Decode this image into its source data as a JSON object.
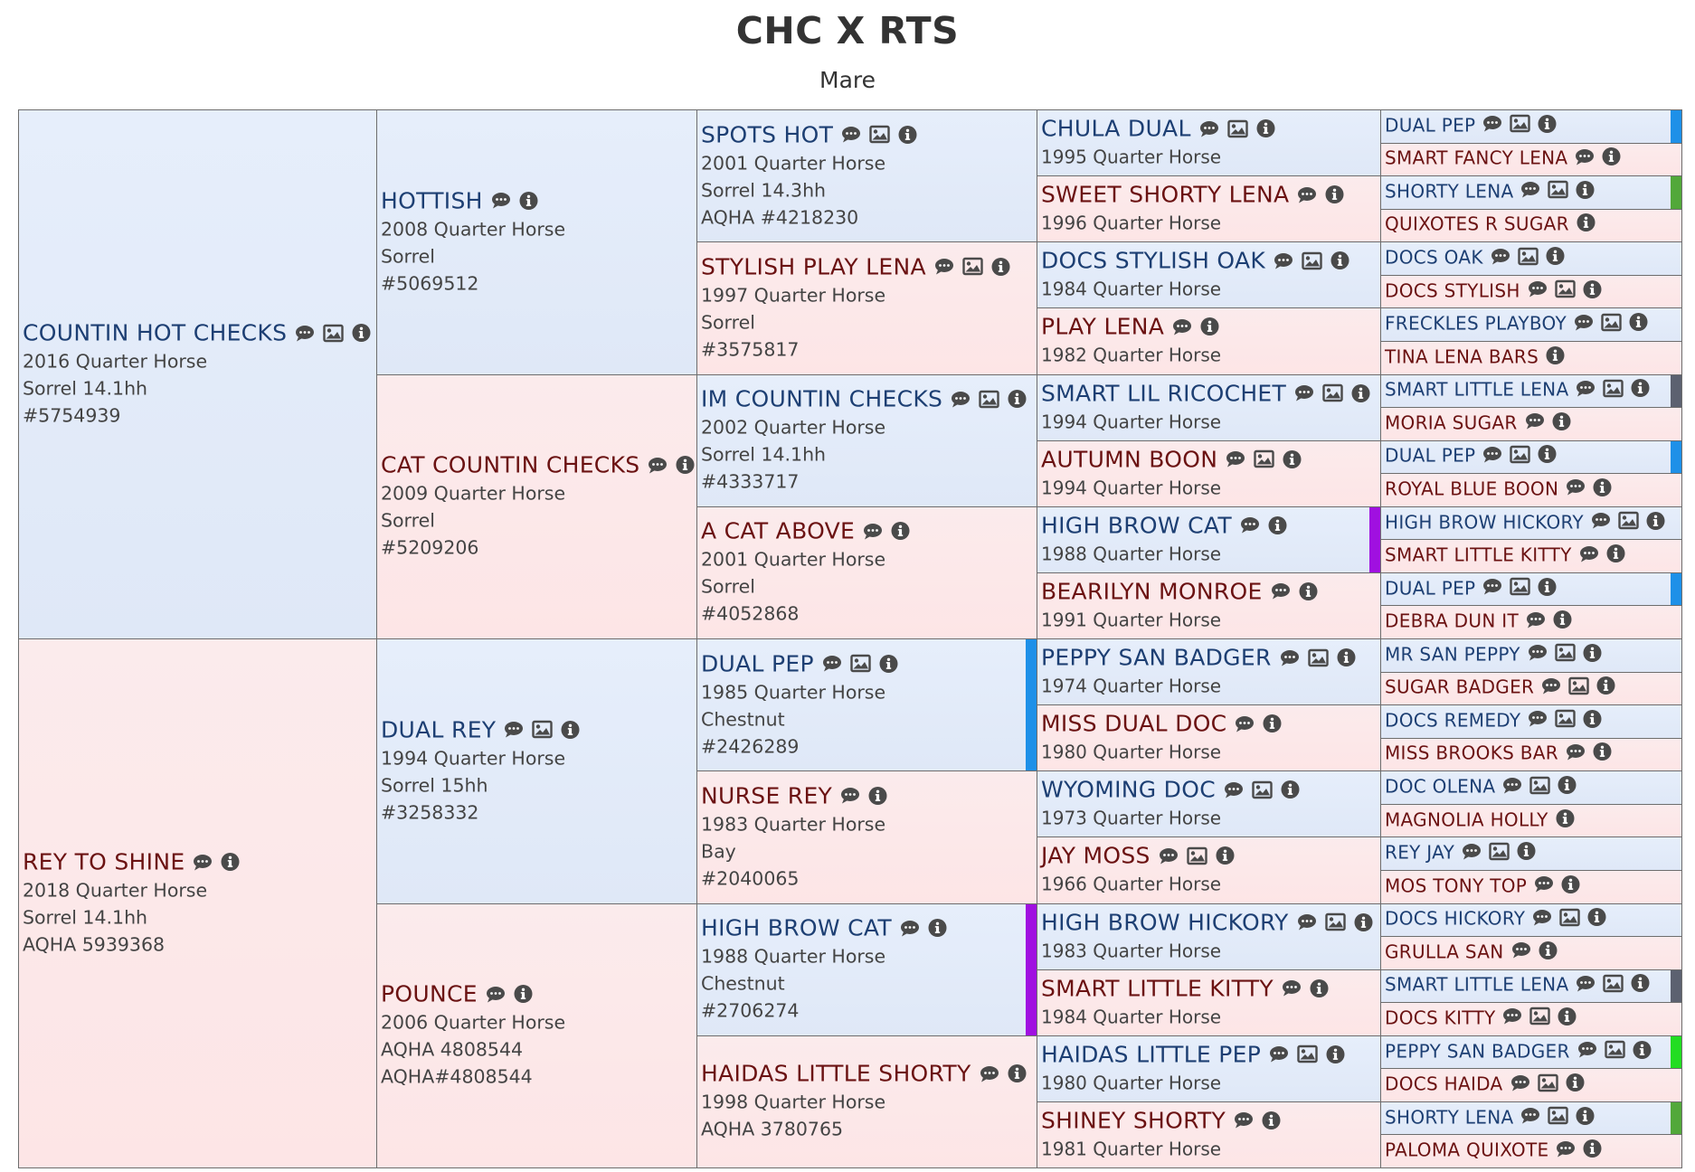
{
  "header": {
    "title": "CHC X RTS",
    "subtitle": "Mare"
  },
  "pedigree": [
    {
      "gen": 1,
      "sex": "m",
      "name": "COUNTIN HOT CHECKS",
      "icons": [
        "comment",
        "image",
        "info"
      ],
      "details": [
        "2016 Quarter Horse",
        "Sorrel 14.1hh",
        "#5754939"
      ]
    },
    {
      "gen": 1,
      "sex": "f",
      "name": "REY TO SHINE",
      "icons": [
        "comment",
        "info"
      ],
      "details": [
        "2018 Quarter Horse",
        "Sorrel 14.1hh",
        "AQHA 5939368"
      ]
    },
    {
      "gen": 2,
      "sex": "m",
      "name": "HOTTISH",
      "icons": [
        "comment",
        "info"
      ],
      "details": [
        "2008 Quarter Horse",
        "Sorrel",
        "#5069512"
      ]
    },
    {
      "gen": 2,
      "sex": "f",
      "name": "CAT COUNTIN CHECKS",
      "icons": [
        "comment",
        "info"
      ],
      "details": [
        "2009 Quarter Horse",
        "Sorrel",
        "#5209206"
      ]
    },
    {
      "gen": 2,
      "sex": "m",
      "name": "DUAL REY",
      "icons": [
        "comment",
        "image",
        "info"
      ],
      "details": [
        "1994 Quarter Horse",
        "Sorrel 15hh",
        "#3258332"
      ]
    },
    {
      "gen": 2,
      "sex": "f",
      "name": "POUNCE",
      "icons": [
        "comment",
        "info"
      ],
      "details": [
        "2006 Quarter Horse",
        "AQHA 4808544",
        "AQHA#4808544"
      ]
    },
    {
      "gen": 3,
      "sex": "m",
      "name": "SPOTS HOT",
      "icons": [
        "comment",
        "image",
        "info"
      ],
      "details": [
        "2001 Quarter Horse",
        "Sorrel 14.3hh",
        "AQHA #4218230"
      ]
    },
    {
      "gen": 3,
      "sex": "f",
      "name": "STYLISH PLAY LENA",
      "icons": [
        "comment",
        "image",
        "info"
      ],
      "details": [
        "1997 Quarter Horse",
        "Sorrel",
        "#3575817"
      ]
    },
    {
      "gen": 3,
      "sex": "m",
      "name": "IM COUNTIN CHECKS",
      "icons": [
        "comment",
        "image",
        "info"
      ],
      "details": [
        "2002 Quarter Horse",
        "Sorrel 14.1hh",
        "#4333717"
      ]
    },
    {
      "gen": 3,
      "sex": "f",
      "name": "A CAT ABOVE",
      "icons": [
        "comment",
        "info"
      ],
      "details": [
        "2001 Quarter Horse",
        "Sorrel",
        "#4052868"
      ]
    },
    {
      "gen": 3,
      "sex": "m",
      "name": "DUAL PEP",
      "icons": [
        "comment",
        "image",
        "info"
      ],
      "details": [
        "1985 Quarter Horse",
        "Chestnut",
        "#2426289"
      ],
      "bar": "#1e90e8"
    },
    {
      "gen": 3,
      "sex": "f",
      "name": "NURSE REY",
      "icons": [
        "comment",
        "info"
      ],
      "details": [
        "1983 Quarter Horse",
        "Bay",
        "#2040065"
      ]
    },
    {
      "gen": 3,
      "sex": "m",
      "name": "HIGH BROW CAT",
      "icons": [
        "comment",
        "info"
      ],
      "details": [
        "1988 Quarter Horse",
        "Chestnut",
        "#2706274"
      ],
      "bar": "#a010e0"
    },
    {
      "gen": 3,
      "sex": "f",
      "name": "HAIDAS LITTLE SHORTY",
      "icons": [
        "comment",
        "info"
      ],
      "details": [
        "1998 Quarter Horse",
        "AQHA 3780765"
      ]
    },
    {
      "gen": 4,
      "sex": "m",
      "name": "CHULA DUAL",
      "icons": [
        "comment",
        "image",
        "info"
      ],
      "details": [
        "1995 Quarter Horse"
      ]
    },
    {
      "gen": 4,
      "sex": "f",
      "name": "SWEET SHORTY LENA",
      "icons": [
        "comment",
        "info"
      ],
      "details": [
        "1996 Quarter Horse"
      ]
    },
    {
      "gen": 4,
      "sex": "m",
      "name": "DOCS STYLISH OAK",
      "icons": [
        "comment",
        "image",
        "info"
      ],
      "details": [
        "1984 Quarter Horse"
      ]
    },
    {
      "gen": 4,
      "sex": "f",
      "name": "PLAY LENA",
      "icons": [
        "comment",
        "info"
      ],
      "details": [
        "1982 Quarter Horse"
      ]
    },
    {
      "gen": 4,
      "sex": "m",
      "name": "SMART LIL RICOCHET",
      "icons": [
        "comment",
        "image",
        "info"
      ],
      "details": [
        "1994 Quarter Horse"
      ]
    },
    {
      "gen": 4,
      "sex": "f",
      "name": "AUTUMN BOON",
      "icons": [
        "comment",
        "image",
        "info"
      ],
      "details": [
        "1994 Quarter Horse"
      ]
    },
    {
      "gen": 4,
      "sex": "m",
      "name": "HIGH BROW CAT",
      "icons": [
        "comment",
        "info"
      ],
      "details": [
        "1988 Quarter Horse"
      ],
      "bar": "#a010e0"
    },
    {
      "gen": 4,
      "sex": "f",
      "name": "BEARILYN MONROE",
      "icons": [
        "comment",
        "info"
      ],
      "details": [
        "1991 Quarter Horse"
      ]
    },
    {
      "gen": 4,
      "sex": "m",
      "name": "PEPPY SAN BADGER",
      "icons": [
        "comment",
        "image",
        "info"
      ],
      "details": [
        "1974 Quarter Horse"
      ]
    },
    {
      "gen": 4,
      "sex": "f",
      "name": "MISS DUAL DOC",
      "icons": [
        "comment",
        "info"
      ],
      "details": [
        "1980 Quarter Horse"
      ]
    },
    {
      "gen": 4,
      "sex": "m",
      "name": "WYOMING DOC",
      "icons": [
        "comment",
        "image",
        "info"
      ],
      "details": [
        "1973 Quarter Horse"
      ]
    },
    {
      "gen": 4,
      "sex": "f",
      "name": "JAY MOSS",
      "icons": [
        "comment",
        "image",
        "info"
      ],
      "details": [
        "1966 Quarter Horse"
      ]
    },
    {
      "gen": 4,
      "sex": "m",
      "name": "HIGH BROW HICKORY",
      "icons": [
        "comment",
        "image",
        "info"
      ],
      "details": [
        "1983 Quarter Horse"
      ]
    },
    {
      "gen": 4,
      "sex": "f",
      "name": "SMART LITTLE KITTY",
      "icons": [
        "comment",
        "info"
      ],
      "details": [
        "1984 Quarter Horse"
      ]
    },
    {
      "gen": 4,
      "sex": "m",
      "name": "HAIDAS LITTLE PEP",
      "icons": [
        "comment",
        "image",
        "info"
      ],
      "details": [
        "1980 Quarter Horse"
      ]
    },
    {
      "gen": 4,
      "sex": "f",
      "name": "SHINEY SHORTY",
      "icons": [
        "comment",
        "info"
      ],
      "details": [
        "1981 Quarter Horse"
      ]
    },
    {
      "gen": 5,
      "sex": "m",
      "name": "DUAL PEP",
      "icons": [
        "comment",
        "image",
        "info"
      ],
      "bar": "#1e90e8"
    },
    {
      "gen": 5,
      "sex": "f",
      "name": "SMART FANCY LENA",
      "icons": [
        "comment",
        "info"
      ]
    },
    {
      "gen": 5,
      "sex": "m",
      "name": "SHORTY LENA",
      "icons": [
        "comment",
        "image",
        "info"
      ],
      "bar": "#52a83a"
    },
    {
      "gen": 5,
      "sex": "f",
      "name": "QUIXOTES R SUGAR",
      "icons": [
        "info"
      ]
    },
    {
      "gen": 5,
      "sex": "m",
      "name": "DOCS OAK",
      "icons": [
        "comment",
        "image",
        "info"
      ]
    },
    {
      "gen": 5,
      "sex": "f",
      "name": "DOCS STYLISH",
      "icons": [
        "comment",
        "image",
        "info"
      ]
    },
    {
      "gen": 5,
      "sex": "m",
      "name": "FRECKLES PLAYBOY",
      "icons": [
        "comment",
        "image",
        "info"
      ]
    },
    {
      "gen": 5,
      "sex": "f",
      "name": "TINA LENA BARS",
      "icons": [
        "info"
      ]
    },
    {
      "gen": 5,
      "sex": "m",
      "name": "SMART LITTLE LENA",
      "icons": [
        "comment",
        "image",
        "info"
      ],
      "bar": "#5c6170"
    },
    {
      "gen": 5,
      "sex": "f",
      "name": "MORIA SUGAR",
      "icons": [
        "comment",
        "info"
      ]
    },
    {
      "gen": 5,
      "sex": "m",
      "name": "DUAL PEP",
      "icons": [
        "comment",
        "image",
        "info"
      ],
      "bar": "#1e90e8"
    },
    {
      "gen": 5,
      "sex": "f",
      "name": "ROYAL BLUE BOON",
      "icons": [
        "comment",
        "info"
      ]
    },
    {
      "gen": 5,
      "sex": "m",
      "name": "HIGH BROW HICKORY",
      "icons": [
        "comment",
        "image",
        "info"
      ]
    },
    {
      "gen": 5,
      "sex": "f",
      "name": "SMART LITTLE KITTY",
      "icons": [
        "comment",
        "info"
      ]
    },
    {
      "gen": 5,
      "sex": "m",
      "name": "DUAL PEP",
      "icons": [
        "comment",
        "image",
        "info"
      ],
      "bar": "#1e90e8"
    },
    {
      "gen": 5,
      "sex": "f",
      "name": "DEBRA DUN IT",
      "icons": [
        "comment",
        "info"
      ]
    },
    {
      "gen": 5,
      "sex": "m",
      "name": "MR SAN PEPPY",
      "icons": [
        "comment",
        "image",
        "info"
      ]
    },
    {
      "gen": 5,
      "sex": "f",
      "name": "SUGAR BADGER",
      "icons": [
        "comment",
        "image",
        "info"
      ]
    },
    {
      "gen": 5,
      "sex": "m",
      "name": "DOCS REMEDY",
      "icons": [
        "comment",
        "image",
        "info"
      ]
    },
    {
      "gen": 5,
      "sex": "f",
      "name": "MISS BROOKS BAR",
      "icons": [
        "comment",
        "info"
      ]
    },
    {
      "gen": 5,
      "sex": "m",
      "name": "DOC OLENA",
      "icons": [
        "comment",
        "image",
        "info"
      ]
    },
    {
      "gen": 5,
      "sex": "f",
      "name": "MAGNOLIA HOLLY",
      "icons": [
        "info"
      ]
    },
    {
      "gen": 5,
      "sex": "m",
      "name": "REY JAY",
      "icons": [
        "comment",
        "image",
        "info"
      ]
    },
    {
      "gen": 5,
      "sex": "f",
      "name": "MOS TONY TOP",
      "icons": [
        "comment",
        "info"
      ]
    },
    {
      "gen": 5,
      "sex": "m",
      "name": "DOCS HICKORY",
      "icons": [
        "comment",
        "image",
        "info"
      ]
    },
    {
      "gen": 5,
      "sex": "f",
      "name": "GRULLA SAN",
      "icons": [
        "comment",
        "info"
      ]
    },
    {
      "gen": 5,
      "sex": "m",
      "name": "SMART LITTLE LENA",
      "icons": [
        "comment",
        "image",
        "info"
      ],
      "bar": "#5c6170"
    },
    {
      "gen": 5,
      "sex": "f",
      "name": "DOCS KITTY",
      "icons": [
        "comment",
        "image",
        "info"
      ]
    },
    {
      "gen": 5,
      "sex": "m",
      "name": "PEPPY SAN BADGER",
      "icons": [
        "comment",
        "image",
        "info"
      ],
      "bar": "#22dd22"
    },
    {
      "gen": 5,
      "sex": "f",
      "name": "DOCS HAIDA",
      "icons": [
        "comment",
        "image",
        "info"
      ]
    },
    {
      "gen": 5,
      "sex": "m",
      "name": "SHORTY LENA",
      "icons": [
        "comment",
        "image",
        "info"
      ],
      "bar": "#52a83a"
    },
    {
      "gen": 5,
      "sex": "f",
      "name": "PALOMA QUIXOTE",
      "icons": [
        "comment",
        "info"
      ]
    }
  ],
  "color_highlights": {
    "gen4_peppy_san_badger_bar": "#22dd22",
    "gen4_high_brow_cat_bar": "#a010e0"
  },
  "colors": {
    "male_bg": "#e3ebf8",
    "female_bg": "#fce8e9",
    "male_text": "#1d3f73",
    "female_text": "#6b1212",
    "border": "#6d6d6d"
  }
}
